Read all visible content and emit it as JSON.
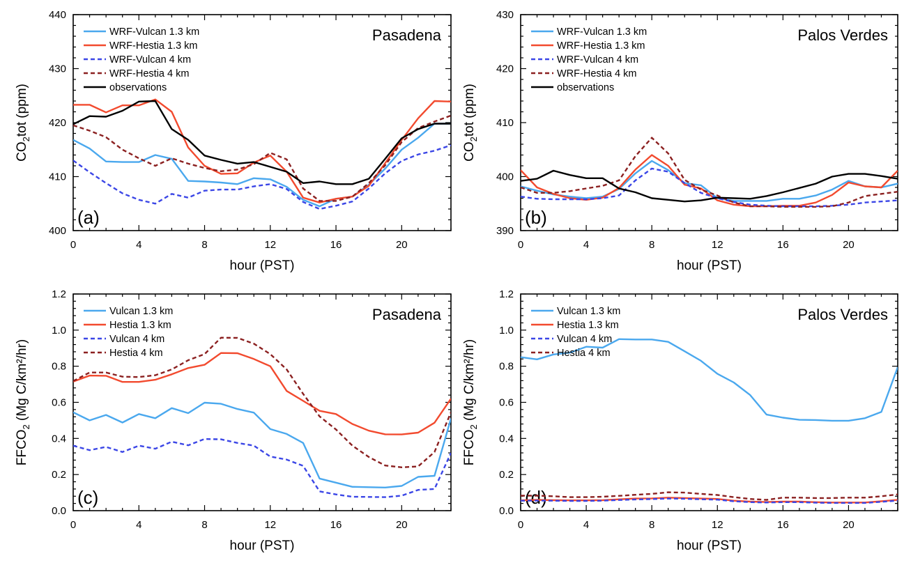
{
  "series_styles": [
    {
      "key": "s0",
      "color": "#4aa8ee",
      "dash": "solid"
    },
    {
      "key": "s1",
      "color": "#f24a2e",
      "dash": "solid"
    },
    {
      "key": "s2",
      "color": "#3b46e6",
      "dash": "dashed"
    },
    {
      "key": "s3",
      "color": "#8b2020",
      "dash": "dashed"
    },
    {
      "key": "s4",
      "color": "#000000",
      "dash": "solid"
    }
  ],
  "chart_data": [
    {
      "panel": "(a)",
      "title": "Pasadena",
      "type": "line",
      "xlabel": "hour (PST)",
      "ylabel_main": "CO",
      "ylabel_sub": "2",
      "ylabel_tail": "tot (ppm)",
      "xlim": [
        0,
        23
      ],
      "ylim": [
        400,
        440
      ],
      "xticks": [
        0,
        4,
        8,
        12,
        16,
        20
      ],
      "yticks": [
        400,
        410,
        420,
        430,
        440
      ],
      "x": [
        0,
        1,
        2,
        3,
        4,
        5,
        6,
        7,
        8,
        9,
        10,
        11,
        12,
        13,
        14,
        15,
        16,
        17,
        18,
        19,
        20,
        21,
        22,
        23
      ],
      "series": [
        {
          "name": "WRF-Vulcan 1.3 km",
          "style": "s0",
          "values": [
            416.8,
            415.2,
            412.8,
            412.7,
            412.7,
            414.0,
            413.3,
            409.2,
            409.1,
            408.9,
            408.6,
            409.7,
            409.5,
            408.1,
            405.7,
            404.5,
            405.9,
            406.3,
            408.5,
            411.5,
            415.0,
            417.2,
            419.8,
            419.8
          ]
        },
        {
          "name": "WRF-Hestia 1.3 km",
          "style": "s1",
          "values": [
            423.3,
            423.3,
            421.9,
            423.2,
            423.2,
            424.3,
            422.0,
            415.4,
            412.0,
            410.5,
            410.6,
            412.6,
            413.9,
            410.9,
            406.1,
            405.2,
            405.9,
            406.3,
            408.3,
            412.5,
            416.8,
            420.8,
            424.0,
            423.9
          ]
        },
        {
          "name": "WRF-Vulcan 4 km",
          "style": "s2",
          "values": [
            413.0,
            410.8,
            408.8,
            406.9,
            405.7,
            405.0,
            406.8,
            406.1,
            407.4,
            407.6,
            407.6,
            408.2,
            408.6,
            407.7,
            405.3,
            404.0,
            404.6,
            405.4,
            407.8,
            410.6,
            412.9,
            414.1,
            414.8,
            415.8
          ]
        },
        {
          "name": "WRF-Hestia 4 km",
          "style": "s3",
          "values": [
            419.5,
            418.5,
            417.3,
            415.0,
            413.4,
            412.0,
            413.4,
            412.4,
            411.6,
            411.0,
            411.3,
            412.3,
            414.4,
            413.2,
            407.8,
            405.5,
            405.5,
            406.3,
            408.8,
            412.1,
            416.4,
            419.0,
            420.2,
            421.3
          ]
        },
        {
          "name": "observations",
          "style": "s4",
          "values": [
            419.7,
            421.2,
            421.1,
            422.2,
            423.9,
            424.0,
            418.8,
            416.8,
            413.9,
            413.1,
            412.4,
            412.7,
            411.8,
            410.9,
            408.8,
            409.1,
            408.6,
            408.6,
            409.6,
            413.3,
            417.1,
            418.8,
            419.8,
            419.8
          ]
        }
      ]
    },
    {
      "panel": "(b)",
      "title": "Palos Verdes",
      "type": "line",
      "xlabel": "hour (PST)",
      "ylabel_main": "CO",
      "ylabel_sub": "2",
      "ylabel_tail": "tot (ppm)",
      "xlim": [
        0,
        23
      ],
      "ylim": [
        390,
        430
      ],
      "xticks": [
        0,
        4,
        8,
        12,
        16,
        20
      ],
      "yticks": [
        390,
        400,
        410,
        420,
        430
      ],
      "x": [
        0,
        1,
        2,
        3,
        4,
        5,
        6,
        7,
        8,
        9,
        10,
        11,
        12,
        13,
        14,
        15,
        16,
        17,
        18,
        19,
        20,
        21,
        22,
        23
      ],
      "series": [
        {
          "name": "WRF-Vulcan 1.3 km",
          "style": "s0",
          "values": [
            398.2,
            397.4,
            396.7,
            396.3,
            396.0,
            396.3,
            397.7,
            400.6,
            402.9,
            401.2,
            398.8,
            398.4,
            396.0,
            395.5,
            395.5,
            395.5,
            395.9,
            395.9,
            396.5,
            397.6,
            399.2,
            398.2,
            398.0,
            398.7
          ]
        },
        {
          "name": "WRF-Hestia 1.3 km",
          "style": "s1",
          "values": [
            401.2,
            398.0,
            396.8,
            396.0,
            395.7,
            396.1,
            397.9,
            401.3,
            404.0,
            402.0,
            398.5,
            397.8,
            395.6,
            394.8,
            394.5,
            394.5,
            394.6,
            394.6,
            395.2,
            396.6,
            398.9,
            398.2,
            398.0,
            401.1
          ]
        },
        {
          "name": "WRF-Vulcan 4 km",
          "style": "s2",
          "values": [
            396.3,
            395.9,
            395.8,
            395.8,
            395.8,
            396.0,
            396.5,
            399.3,
            401.5,
            400.9,
            398.8,
            397.0,
            396.0,
            395.3,
            394.8,
            394.6,
            394.5,
            394.5,
            394.5,
            394.6,
            394.8,
            395.2,
            395.4,
            395.6
          ]
        },
        {
          "name": "WRF-Hestia 4 km",
          "style": "s3",
          "values": [
            398.0,
            397.0,
            397.0,
            397.3,
            397.8,
            398.3,
            399.3,
            403.8,
            407.2,
            404.3,
            399.4,
            397.6,
            396.5,
            395.2,
            394.5,
            394.5,
            394.4,
            394.4,
            394.4,
            394.5,
            395.2,
            396.4,
            396.8,
            397.2
          ]
        },
        {
          "name": "observations",
          "style": "s4",
          "values": [
            399.2,
            399.6,
            401.1,
            400.3,
            399.7,
            399.7,
            397.8,
            397.1,
            396.0,
            395.7,
            395.4,
            395.6,
            396.1,
            396.0,
            395.9,
            396.4,
            397.1,
            397.9,
            398.7,
            400.0,
            400.5,
            400.5,
            400.1,
            399.6
          ]
        }
      ]
    },
    {
      "panel": "(c)",
      "title": "Pasadena",
      "type": "line",
      "xlabel": "hour (PST)",
      "ylabel_main": "FFCO",
      "ylabel_sub": "2",
      "ylabel_tail": " (Mg C/km²/hr)",
      "xlim": [
        0,
        23
      ],
      "ylim": [
        0,
        1.2
      ],
      "xticks": [
        0,
        4,
        8,
        12,
        16,
        20
      ],
      "yticks": [
        0.0,
        0.2,
        0.4,
        0.6,
        0.8,
        1.0,
        1.2
      ],
      "x": [
        0,
        1,
        2,
        3,
        4,
        5,
        6,
        7,
        8,
        9,
        10,
        11,
        12,
        13,
        14,
        15,
        16,
        17,
        18,
        19,
        20,
        21,
        22,
        23
      ],
      "series": [
        {
          "name": "Vulcan 1.3 km",
          "style": "s0",
          "values": [
            0.545,
            0.5,
            0.53,
            0.488,
            0.535,
            0.512,
            0.568,
            0.54,
            0.598,
            0.592,
            0.563,
            0.543,
            0.452,
            0.425,
            0.375,
            0.178,
            0.155,
            0.132,
            0.13,
            0.128,
            0.137,
            0.187,
            0.193,
            0.51
          ]
        },
        {
          "name": "Hestia 1.3 km",
          "style": "s1",
          "values": [
            0.715,
            0.748,
            0.747,
            0.713,
            0.713,
            0.725,
            0.755,
            0.79,
            0.808,
            0.873,
            0.872,
            0.84,
            0.8,
            0.663,
            0.608,
            0.553,
            0.535,
            0.48,
            0.443,
            0.423,
            0.422,
            0.432,
            0.487,
            0.62
          ]
        },
        {
          "name": "Vulcan 4 km",
          "style": "s2",
          "values": [
            0.36,
            0.335,
            0.353,
            0.325,
            0.36,
            0.343,
            0.382,
            0.362,
            0.397,
            0.395,
            0.375,
            0.36,
            0.3,
            0.283,
            0.248,
            0.107,
            0.09,
            0.077,
            0.076,
            0.075,
            0.083,
            0.115,
            0.12,
            0.32
          ]
        },
        {
          "name": "Hestia 4 km",
          "style": "s3",
          "values": [
            0.718,
            0.765,
            0.765,
            0.742,
            0.74,
            0.75,
            0.782,
            0.833,
            0.867,
            0.958,
            0.957,
            0.925,
            0.867,
            0.782,
            0.647,
            0.522,
            0.45,
            0.36,
            0.297,
            0.25,
            0.24,
            0.245,
            0.325,
            0.545
          ]
        }
      ]
    },
    {
      "panel": "(d)",
      "title": "Palos Verdes",
      "type": "line",
      "xlabel": "hour (PST)",
      "ylabel_main": "FFCO",
      "ylabel_sub": "2",
      "ylabel_tail": " (Mg C/km²/hr)",
      "xlim": [
        0,
        23
      ],
      "ylim": [
        0,
        1.2
      ],
      "xticks": [
        0,
        4,
        8,
        12,
        16,
        20
      ],
      "yticks": [
        0.0,
        0.2,
        0.4,
        0.6,
        0.8,
        1.0,
        1.2
      ],
      "x": [
        0,
        1,
        2,
        3,
        4,
        5,
        6,
        7,
        8,
        9,
        10,
        11,
        12,
        13,
        14,
        15,
        16,
        17,
        18,
        19,
        20,
        21,
        22,
        23
      ],
      "series": [
        {
          "name": "Vulcan 1.3 km",
          "style": "s0",
          "values": [
            0.85,
            0.838,
            0.865,
            0.875,
            0.908,
            0.903,
            0.95,
            0.948,
            0.948,
            0.935,
            0.883,
            0.83,
            0.758,
            0.71,
            0.64,
            0.532,
            0.515,
            0.503,
            0.502,
            0.498,
            0.498,
            0.512,
            0.547,
            0.795
          ]
        },
        {
          "name": "Hestia 1.3 km",
          "style": "s1",
          "values": [
            0.057,
            0.06,
            0.058,
            0.057,
            0.057,
            0.058,
            0.063,
            0.067,
            0.068,
            0.072,
            0.07,
            0.067,
            0.065,
            0.055,
            0.05,
            0.048,
            0.05,
            0.05,
            0.047,
            0.045,
            0.045,
            0.045,
            0.052,
            0.06
          ]
        },
        {
          "name": "Vulcan 4 km",
          "style": "s2",
          "values": [
            0.055,
            0.056,
            0.055,
            0.054,
            0.054,
            0.055,
            0.059,
            0.062,
            0.064,
            0.067,
            0.066,
            0.063,
            0.061,
            0.052,
            0.047,
            0.045,
            0.047,
            0.047,
            0.044,
            0.043,
            0.043,
            0.043,
            0.049,
            0.056
          ]
        },
        {
          "name": "Hestia 4 km",
          "style": "s3",
          "values": [
            0.083,
            0.083,
            0.08,
            0.075,
            0.075,
            0.077,
            0.082,
            0.088,
            0.093,
            0.102,
            0.1,
            0.093,
            0.087,
            0.075,
            0.065,
            0.06,
            0.072,
            0.072,
            0.07,
            0.07,
            0.072,
            0.072,
            0.08,
            0.09
          ]
        }
      ]
    }
  ]
}
